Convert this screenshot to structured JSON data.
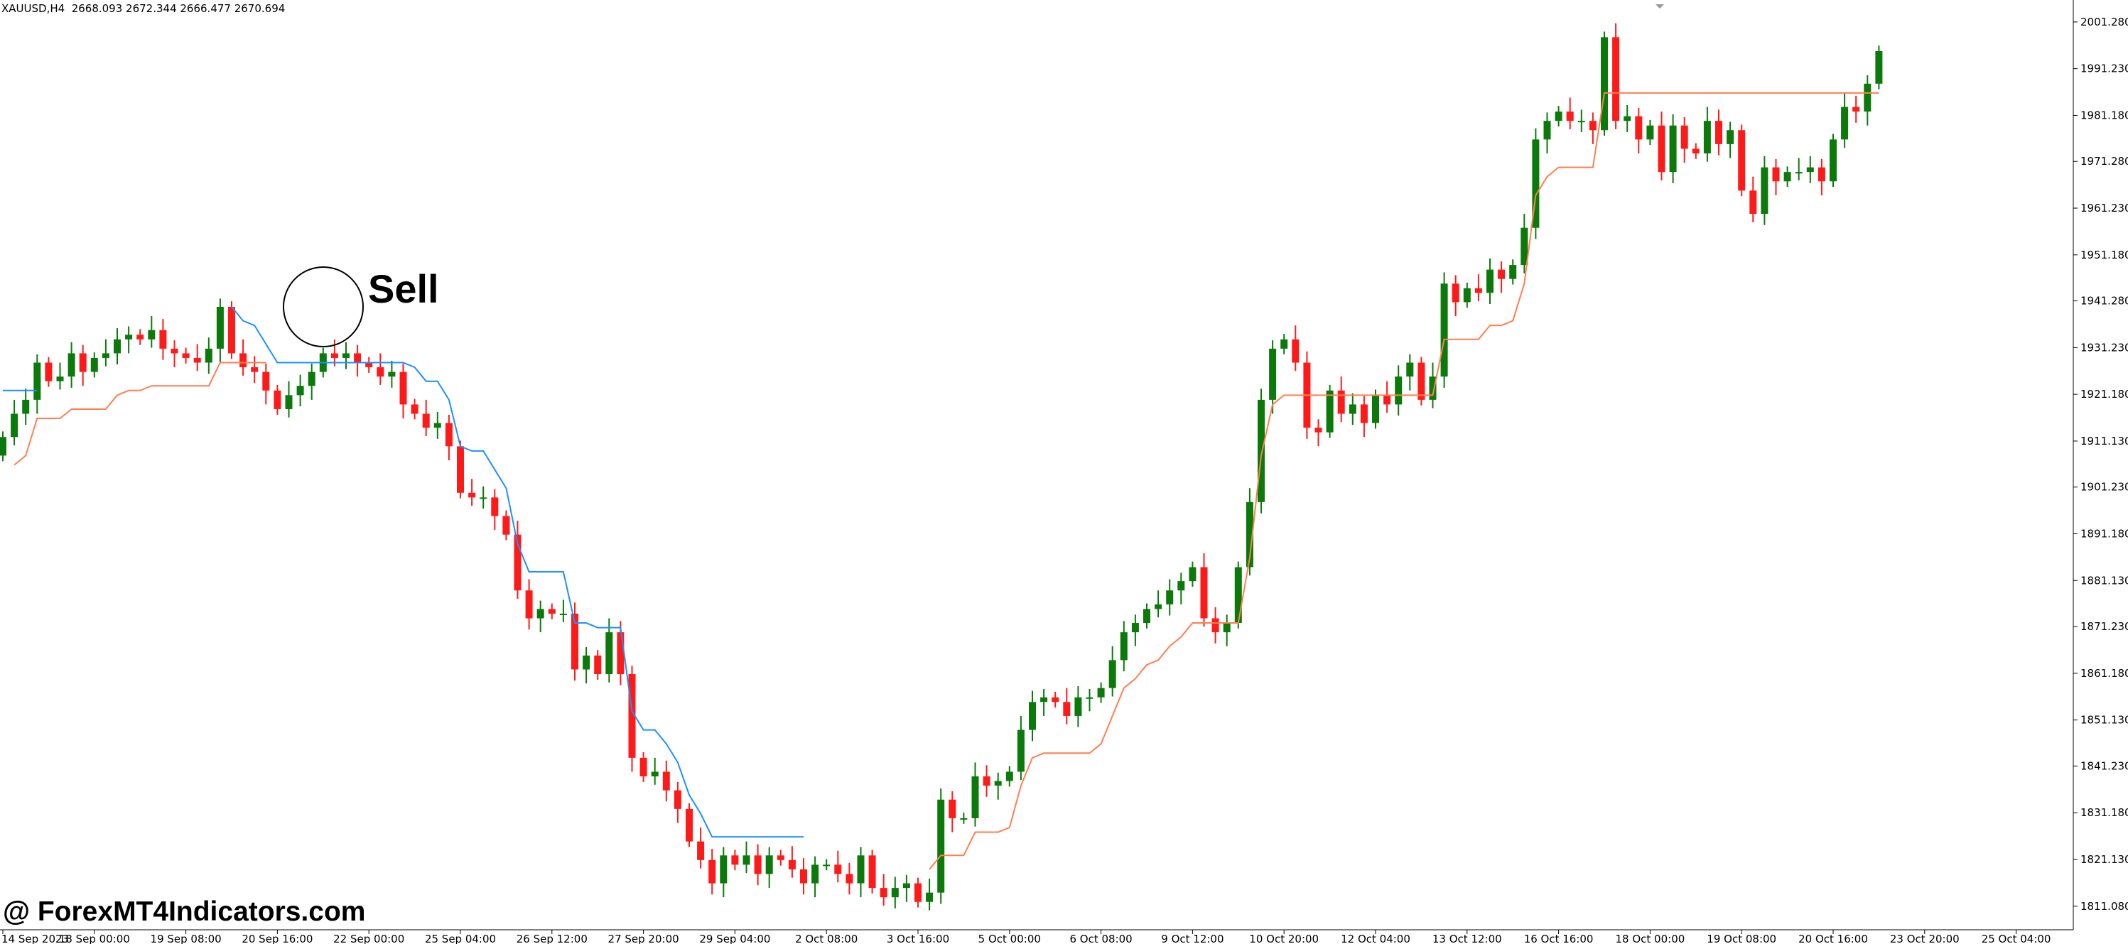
{
  "header": {
    "symbol_info": "XAUUSD,H4  2668.093 2672.344 2666.477 2670.694"
  },
  "annotation": {
    "label": "Sell"
  },
  "watermark": {
    "text": "@ ForexMT4Indicators.com"
  },
  "colors": {
    "background": "#ffffff",
    "bull": "#0b7a0b",
    "bear": "#ff1a1a",
    "upper_line": "#1e90ff",
    "lower_line": "#ff7f50",
    "axis": "#000000"
  },
  "chart_data": {
    "type": "candlestick",
    "title": "",
    "ylim": [
      1806,
      2006
    ],
    "y_ticks": [
      "2001.280",
      "1991.230",
      "1981.180",
      "1971.280",
      "1961.230",
      "1951.180",
      "1941.280",
      "1931.230",
      "1921.180",
      "1911.130",
      "1901.230",
      "1891.180",
      "1881.130",
      "1871.230",
      "1861.180",
      "1851.130",
      "1841.230",
      "1831.180",
      "1821.130",
      "1811.080"
    ],
    "x_ticks": [
      "14 Sep 2023",
      "18 Sep 00:00",
      "19 Sep 08:00",
      "20 Sep 16:00",
      "22 Sep 00:00",
      "25 Sep 04:00",
      "26 Sep 12:00",
      "27 Sep 20:00",
      "29 Sep 04:00",
      "2 Oct 08:00",
      "3 Oct 16:00",
      "5 Oct 00:00",
      "6 Oct 08:00",
      "9 Oct 12:00",
      "10 Oct 20:00",
      "12 Oct 04:00",
      "13 Oct 12:00",
      "16 Oct 16:00",
      "18 Oct 00:00",
      "19 Oct 08:00",
      "20 Oct 16:00",
      "23 Oct 20:00",
      "25 Oct 04:00"
    ],
    "x_tick_index": [
      0,
      8,
      16,
      24,
      32,
      40,
      48,
      56,
      64,
      72,
      80,
      88,
      96,
      104,
      112,
      120,
      128,
      136,
      144,
      152,
      160,
      168,
      176
    ],
    "candle_close": [
      1912,
      1917,
      1920,
      1928,
      1924,
      1925,
      1930,
      1926,
      1929,
      1930,
      1933,
      1934,
      1933,
      1935,
      1931,
      1930,
      1929,
      1928,
      1931,
      1940,
      1930,
      1927,
      1926,
      1922,
      1918,
      1921,
      1923,
      1926,
      1930,
      1929,
      1930,
      1928,
      1927,
      1925,
      1926,
      1919,
      1917,
      1914,
      1915,
      1910,
      1900,
      1899,
      1899,
      1895,
      1891,
      1879,
      1873,
      1875,
      1874,
      1874,
      1862,
      1865,
      1861,
      1870,
      1861,
      1843,
      1839,
      1840,
      1836,
      1832,
      1825,
      1821,
      1816,
      1822,
      1820,
      1822,
      1818,
      1822,
      1821,
      1819,
      1816,
      1820,
      1820,
      1818,
      1816,
      1822,
      1815,
      1813,
      1815,
      1816,
      1812,
      1814,
      1834,
      1830,
      1830,
      1839,
      1837,
      1838,
      1840,
      1849,
      1855,
      1856,
      1855,
      1852,
      1856,
      1856,
      1858,
      1864,
      1870,
      1872,
      1875,
      1876,
      1879,
      1881,
      1884,
      1873,
      1870,
      1872,
      1884,
      1898,
      1920,
      1931,
      1933,
      1928,
      1914,
      1913,
      1922,
      1917,
      1919,
      1915,
      1921,
      1919,
      1925,
      1928,
      1920,
      1925,
      1945,
      1941,
      1944,
      1943,
      1948,
      1946,
      1949,
      1957,
      1976,
      1980,
      1982,
      1980,
      1980,
      1978,
      1998,
      1980,
      1981,
      1976,
      1979,
      1969,
      1979,
      1974,
      1973,
      1980,
      1975,
      1978,
      1965,
      1960,
      1970,
      1967,
      1969,
      1969,
      1970,
      1967,
      1976,
      1983,
      1982,
      1988,
      1995
    ],
    "series": [
      {
        "role": "upper",
        "segments": [
          [
            0,
            1930,
            3
          ],
          [
            20,
            1943,
            70
          ]
        ]
      },
      {
        "role": "lower",
        "segments": [
          [
            1,
            1906,
            23
          ],
          [
            81,
            1819,
            171
          ]
        ]
      }
    ]
  }
}
